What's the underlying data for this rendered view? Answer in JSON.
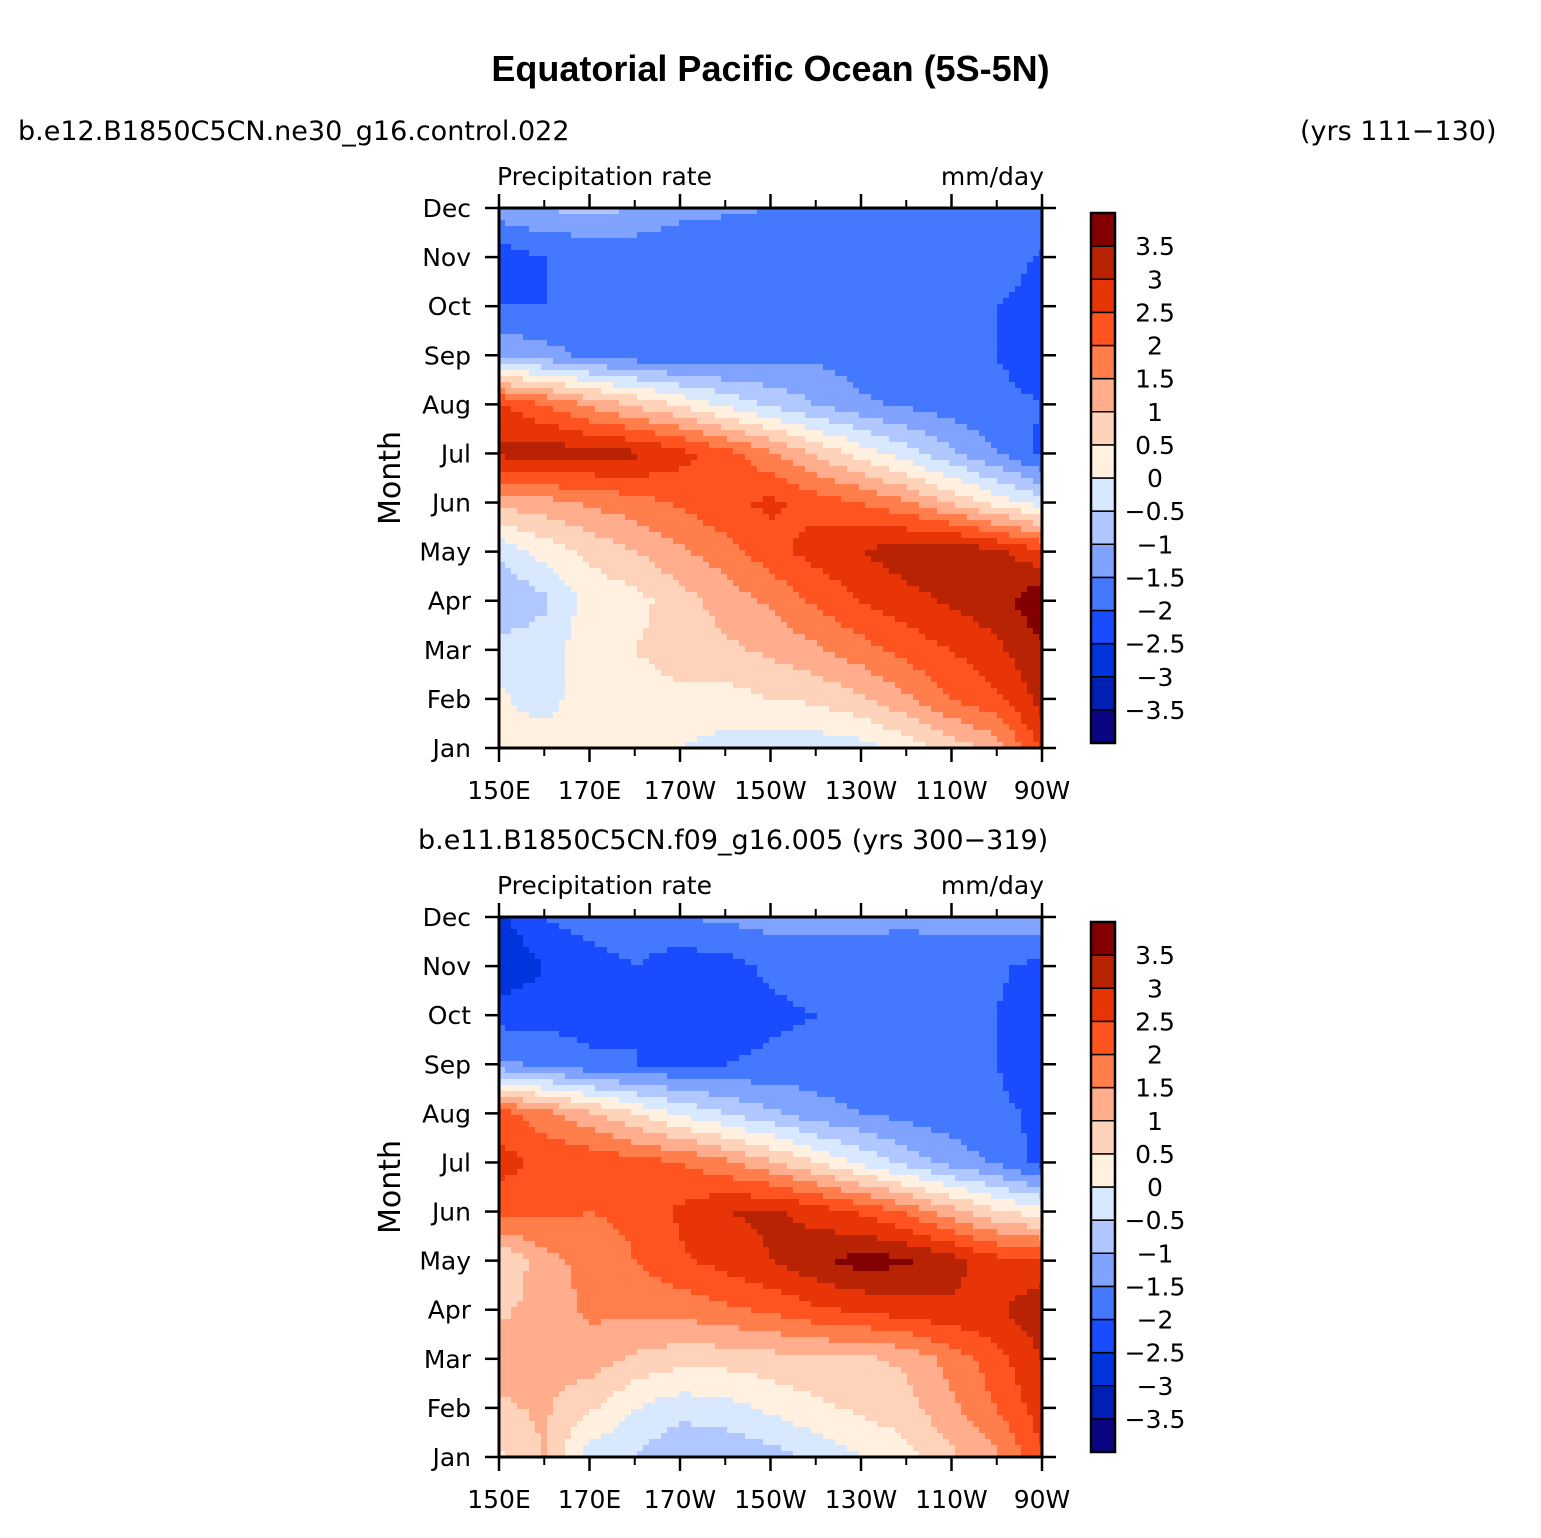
{
  "title": "Equatorial Pacific Ocean (5S-5N)",
  "case_top": "b.e12.B1850C5CN.ne30_g16.control.022",
  "years_top": "(yrs 111−130)",
  "case_bottom": "b.e11.B1850C5CN.f09_g16.005 (yrs 300−319)",
  "chart_data": [
    {
      "type": "heatmap",
      "panel": "top",
      "title_left": "Precipitation rate",
      "title_right": "mm/day",
      "xlabel": "",
      "ylabel": "Month",
      "x_ticks": [
        "150E",
        "170E",
        "170W",
        "150W",
        "130W",
        "110W",
        "90W"
      ],
      "y_ticks": [
        "Jan",
        "Feb",
        "Mar",
        "Apr",
        "May",
        "Jun",
        "Jul",
        "Aug",
        "Sep",
        "Oct",
        "Nov",
        "Dec"
      ],
      "x_lon": [
        150,
        160,
        170,
        180,
        190,
        200,
        210,
        220,
        230,
        240,
        250,
        260,
        270
      ],
      "months": [
        "Jan",
        "Feb",
        "Mar",
        "Apr",
        "May",
        "Jun",
        "Jul",
        "Aug",
        "Sep",
        "Oct",
        "Nov",
        "Dec"
      ],
      "values": [
        [
          0.2,
          0.4,
          0.2,
          0.1,
          0.0,
          -0.2,
          -0.3,
          -0.3,
          -0.2,
          0.2,
          0.7,
          1.2,
          2.6
        ],
        [
          0.1,
          -0.3,
          0.4,
          0.3,
          0.4,
          0.3,
          0.5,
          0.6,
          0.9,
          1.4,
          2.0,
          2.4,
          3.2
        ],
        [
          -0.3,
          -0.2,
          0.3,
          0.5,
          0.7,
          0.9,
          1.1,
          1.4,
          1.8,
          2.2,
          2.5,
          2.9,
          3.4
        ],
        [
          -1.0,
          -0.6,
          0.2,
          0.3,
          0.8,
          1.2,
          1.6,
          2.1,
          2.5,
          2.8,
          3.1,
          3.3,
          3.9
        ],
        [
          -0.4,
          0.2,
          0.6,
          1.0,
          1.4,
          1.8,
          2.3,
          2.7,
          3.0,
          3.3,
          3.5,
          3.1,
          2.6
        ],
        [
          1.2,
          1.3,
          1.6,
          1.8,
          2.1,
          2.4,
          2.6,
          2.3,
          2.0,
          1.6,
          0.9,
          0.3,
          -0.3
        ],
        [
          3.1,
          3.3,
          3.2,
          3.1,
          2.7,
          2.2,
          1.6,
          0.9,
          0.3,
          -0.3,
          -0.9,
          -1.5,
          -2.1
        ],
        [
          2.6,
          2.0,
          1.4,
          0.9,
          0.4,
          -0.1,
          -0.6,
          -1.0,
          -1.4,
          -1.6,
          -1.8,
          -1.9,
          -2.0
        ],
        [
          -1.1,
          -1.3,
          -1.6,
          -1.8,
          -1.9,
          -1.9,
          -1.7,
          -1.6,
          -1.8,
          -1.9,
          -2.0,
          -2.0,
          -2.2
        ],
        [
          -2.0,
          -2.0,
          -2.0,
          -2.0,
          -2.0,
          -2.0,
          -2.0,
          -2.0,
          -2.0,
          -2.0,
          -2.0,
          -2.0,
          -2.3
        ],
        [
          -2.3,
          -2.0,
          -2.0,
          -1.9,
          -2.0,
          -2.0,
          -2.0,
          -1.8,
          -1.9,
          -1.7,
          -1.6,
          -1.6,
          -2.1
        ],
        [
          -1.2,
          -1.0,
          -0.8,
          -1.0,
          -1.3,
          -1.4,
          -1.5,
          -1.5,
          -1.6,
          -1.6,
          -1.6,
          -1.6,
          -1.6
        ]
      ],
      "colorbar": {
        "levels": [
          -3.5,
          -3,
          -2.5,
          -2,
          -1.5,
          -1,
          -0.5,
          0,
          0.5,
          1,
          1.5,
          2,
          2.5,
          3,
          3.5
        ],
        "labels": [
          "−3.5",
          "−3",
          "−2.5",
          "−2",
          "−1.5",
          "−1",
          "−0.5",
          "0",
          "0.5",
          "1",
          "1.5",
          "2",
          "2.5",
          "3",
          "3.5"
        ],
        "colors": [
          "#0a0582",
          "#0020b4",
          "#0034dc",
          "#1a4cff",
          "#4478ff",
          "#7fa3ff",
          "#b0c8ff",
          "#d8e8ff",
          "#fff0e0",
          "#ffd2ba",
          "#ffad8c",
          "#ff7e4c",
          "#ff5420",
          "#e83508",
          "#b82403",
          "#820000"
        ]
      }
    },
    {
      "type": "heatmap",
      "panel": "bottom",
      "title_left": "Precipitation rate",
      "title_right": "mm/day",
      "xlabel": "",
      "ylabel": "Month",
      "x_ticks": [
        "150E",
        "170E",
        "170W",
        "150W",
        "130W",
        "110W",
        "90W"
      ],
      "y_ticks": [
        "Jan",
        "Feb",
        "Mar",
        "Apr",
        "May",
        "Jun",
        "Jul",
        "Aug",
        "Sep",
        "Oct",
        "Nov",
        "Dec"
      ],
      "x_lon": [
        150,
        160,
        170,
        180,
        190,
        200,
        210,
        220,
        230,
        240,
        250,
        260,
        270
      ],
      "months": [
        "Jan",
        "Feb",
        "Mar",
        "Apr",
        "May",
        "Jun",
        "Jul",
        "Aug",
        "Sep",
        "Oct",
        "Nov",
        "Dec"
      ],
      "values": [
        [
          0.4,
          1.0,
          -0.3,
          -0.5,
          -1.0,
          -0.9,
          -0.7,
          -0.4,
          0.0,
          0.3,
          0.9,
          1.4,
          2.4
        ],
        [
          0.9,
          1.1,
          0.6,
          0.0,
          -0.3,
          -0.2,
          0.1,
          0.4,
          0.6,
          0.8,
          1.4,
          2.0,
          2.8
        ],
        [
          1.3,
          1.1,
          1.3,
          0.9,
          0.7,
          0.7,
          0.8,
          0.9,
          0.9,
          1.1,
          1.7,
          2.3,
          3.0
        ],
        [
          0.9,
          1.2,
          1.6,
          1.6,
          1.7,
          1.9,
          2.1,
          2.4,
          2.6,
          2.8,
          2.9,
          2.9,
          3.4
        ],
        [
          0.5,
          1.3,
          1.7,
          2.0,
          2.4,
          2.7,
          3.0,
          3.4,
          3.7,
          3.6,
          3.2,
          2.7,
          2.6
        ],
        [
          2.2,
          2.1,
          2.0,
          2.1,
          2.6,
          3.0,
          3.1,
          2.8,
          2.4,
          1.9,
          1.2,
          0.6,
          0.2
        ],
        [
          2.7,
          2.4,
          2.4,
          2.2,
          2.0,
          1.6,
          1.1,
          0.5,
          -0.1,
          -0.7,
          -1.2,
          -1.6,
          -2.2
        ],
        [
          2.2,
          1.7,
          1.1,
          0.5,
          -0.1,
          -0.5,
          -0.9,
          -1.3,
          -1.5,
          -1.7,
          -1.8,
          -1.9,
          -2.1
        ],
        [
          -1.4,
          -1.6,
          -1.9,
          -2.0,
          -2.0,
          -2.0,
          -1.9,
          -1.8,
          -1.9,
          -2.0,
          -2.0,
          -2.0,
          -2.3
        ],
        [
          -2.2,
          -2.2,
          -2.2,
          -2.0,
          -2.1,
          -2.3,
          -2.1,
          -2.0,
          -2.0,
          -2.0,
          -2.0,
          -2.0,
          -2.4
        ],
        [
          -3.0,
          -2.5,
          -2.3,
          -2.0,
          -2.3,
          -2.2,
          -1.9,
          -1.8,
          -1.8,
          -1.8,
          -1.8,
          -1.9,
          -2.2
        ],
        [
          -2.6,
          -2.0,
          -1.7,
          -1.6,
          -1.5,
          -1.4,
          -1.3,
          -1.3,
          -1.3,
          -1.4,
          -1.3,
          -1.2,
          -1.0
        ]
      ],
      "colorbar": {
        "levels": [
          -3.5,
          -3,
          -2.5,
          -2,
          -1.5,
          -1,
          -0.5,
          0,
          0.5,
          1,
          1.5,
          2,
          2.5,
          3,
          3.5
        ],
        "labels": [
          "−3.5",
          "−3",
          "−2.5",
          "−2",
          "−1.5",
          "−1",
          "−0.5",
          "0",
          "0.5",
          "1",
          "1.5",
          "2",
          "2.5",
          "3",
          "3.5"
        ],
        "colors": [
          "#0a0582",
          "#0020b4",
          "#0034dc",
          "#1a4cff",
          "#4478ff",
          "#7fa3ff",
          "#b0c8ff",
          "#d8e8ff",
          "#fff0e0",
          "#ffd2ba",
          "#ffad8c",
          "#ff7e4c",
          "#ff5420",
          "#e83508",
          "#b82403",
          "#820000"
        ]
      }
    }
  ]
}
